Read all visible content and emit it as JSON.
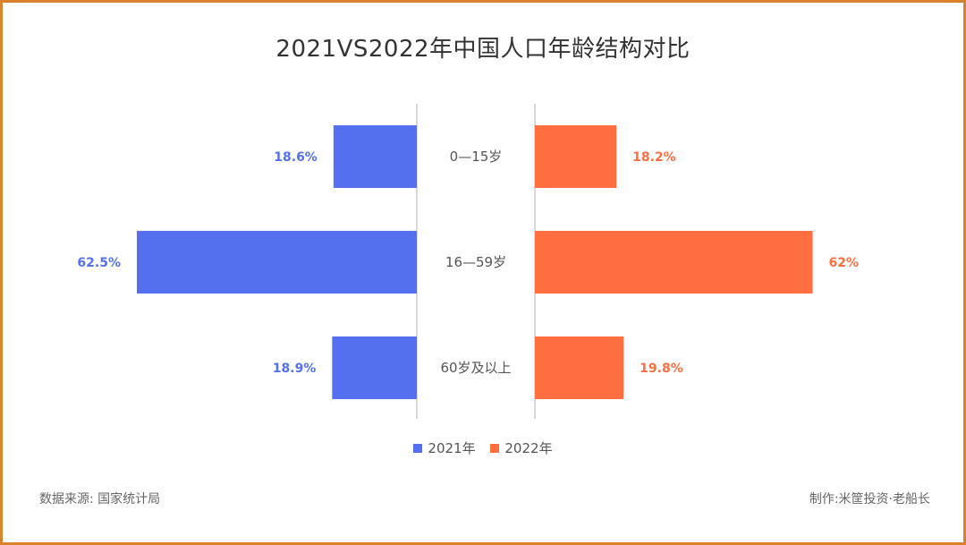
{
  "chart_data": {
    "type": "bar",
    "title": "2021VS2022年中国人口年龄结构对比",
    "categories": [
      "0—15岁",
      "16—59岁",
      "60岁及以上"
    ],
    "series": [
      {
        "name": "2021年",
        "values": [
          18.6,
          62.5,
          18.9
        ],
        "labels": [
          "18.6%",
          "62.5%",
          "18.9%"
        ],
        "color": "#5470ee"
      },
      {
        "name": "2022年",
        "values": [
          18.2,
          62.0,
          19.8
        ],
        "labels": [
          "18.2%",
          "62%",
          "19.8%"
        ],
        "color": "#ff6e40"
      }
    ],
    "xlim": [
      0,
      62.5
    ],
    "legend_position": "bottom",
    "grid": false
  },
  "footer": {
    "source": "数据来源: 国家统计局",
    "credit": "制作:米筐投资·老船长"
  },
  "colors": {
    "border": "#d9822b"
  }
}
